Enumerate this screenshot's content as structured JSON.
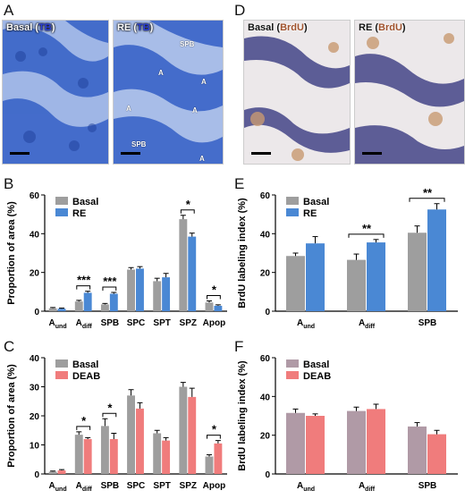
{
  "panels": {
    "A": "A",
    "B": "B",
    "C": "C",
    "D": "D",
    "E": "E",
    "F": "F"
  },
  "micrographs": [
    {
      "name": "basal-tb",
      "prefix": "Basal (",
      "stain": "TB",
      "suffix": ")"
    },
    {
      "name": "re-tb",
      "prefix": "RE (",
      "stain": "TB",
      "suffix": ")",
      "annotations": [
        "SPB",
        "A",
        "A",
        "A",
        "A",
        "SPB",
        "A"
      ]
    },
    {
      "name": "basal-brdu",
      "prefix": "Basal (",
      "stain": "BrdU",
      "suffix": ")"
    },
    {
      "name": "re-brdu",
      "prefix": "RE (",
      "stain": "BrdU",
      "suffix": ")"
    }
  ],
  "colors": {
    "basal": "#9e9e9e",
    "re": "#4a88d4",
    "deab": "#f07c7c",
    "tb_tissue": "#3a64c8",
    "brdu_bg": "#e8e4e6"
  },
  "chart_data": [
    {
      "id": "B",
      "type": "bar",
      "ylabel": "Proportion of area (%)",
      "ylim": [
        0,
        60
      ],
      "yticks": [
        "0",
        "20",
        "40",
        "60"
      ],
      "categories": [
        {
          "main": "A",
          "sub": "und"
        },
        {
          "main": "A",
          "sub": "diff"
        },
        {
          "main": "SPB",
          "sub": ""
        },
        {
          "main": "SPC",
          "sub": ""
        },
        {
          "main": "SPT",
          "sub": ""
        },
        {
          "main": "SPZ",
          "sub": ""
        },
        {
          "main": "Apop",
          "sub": ""
        }
      ],
      "legend_position": "top-left",
      "series": [
        {
          "name": "Basal",
          "color": "#9e9e9e",
          "values": [
            1.5,
            5.0,
            3.5,
            21.5,
            15.5,
            47.5,
            4.5
          ],
          "errors": [
            0.4,
            0.6,
            0.5,
            1.0,
            1.5,
            2.0,
            0.8
          ]
        },
        {
          "name": "RE",
          "color": "#4a88d4",
          "values": [
            1.3,
            9.5,
            9.0,
            22.0,
            17.5,
            38.5,
            2.8
          ],
          "errors": [
            0.3,
            0.8,
            0.7,
            1.0,
            2.0,
            1.8,
            0.5
          ]
        }
      ],
      "significance": [
        {
          "category": 1,
          "label": "***"
        },
        {
          "category": 2,
          "label": "***"
        },
        {
          "category": 5,
          "label": "*"
        },
        {
          "category": 6,
          "label": "*"
        }
      ]
    },
    {
      "id": "C",
      "type": "bar",
      "ylabel": "Proportion of area (%)",
      "ylim": [
        0,
        40
      ],
      "yticks": [
        "0",
        "10",
        "20",
        "30",
        "40"
      ],
      "categories": [
        {
          "main": "A",
          "sub": "und"
        },
        {
          "main": "A",
          "sub": "diff"
        },
        {
          "main": "SPB",
          "sub": ""
        },
        {
          "main": "SPC",
          "sub": ""
        },
        {
          "main": "SPT",
          "sub": ""
        },
        {
          "main": "SPZ",
          "sub": ""
        },
        {
          "main": "Apop",
          "sub": ""
        }
      ],
      "legend_position": "top-left",
      "series": [
        {
          "name": "Basal",
          "color": "#9e9e9e",
          "values": [
            0.8,
            13.5,
            16.5,
            27.0,
            14.0,
            30.0,
            6.0
          ],
          "errors": [
            0.2,
            1.0,
            2.5,
            2.0,
            1.0,
            1.5,
            0.6
          ]
        },
        {
          "name": "DEAB",
          "color": "#f07c7c",
          "values": [
            1.2,
            12.0,
            12.0,
            22.5,
            11.5,
            26.5,
            10.5
          ],
          "errors": [
            0.3,
            0.5,
            2.0,
            2.0,
            1.0,
            3.0,
            1.0
          ]
        }
      ],
      "significance": [
        {
          "category": 1,
          "label": "*"
        },
        {
          "category": 2,
          "label": "*"
        },
        {
          "category": 6,
          "label": "*"
        }
      ]
    },
    {
      "id": "E",
      "type": "bar",
      "ylabel": "BrdU labeling index (%)",
      "ylim": [
        0,
        60
      ],
      "yticks": [
        "0",
        "20",
        "40",
        "60"
      ],
      "categories": [
        {
          "main": "A",
          "sub": "und"
        },
        {
          "main": "A",
          "sub": "diff"
        },
        {
          "main": "SPB",
          "sub": ""
        }
      ],
      "legend_position": "top-left",
      "series": [
        {
          "name": "Basal",
          "color": "#9e9e9e",
          "values": [
            28.5,
            26.5,
            40.5
          ],
          "errors": [
            1.5,
            3.0,
            3.5
          ]
        },
        {
          "name": "RE",
          "color": "#4a88d4",
          "values": [
            35.0,
            35.5,
            52.5
          ],
          "errors": [
            3.5,
            1.5,
            3.0
          ]
        }
      ],
      "significance": [
        {
          "category": 1,
          "label": "**"
        },
        {
          "category": 2,
          "label": "**"
        }
      ]
    },
    {
      "id": "F",
      "type": "bar",
      "ylabel": "BrdU labeling index (%)",
      "ylim": [
        0,
        60
      ],
      "yticks": [
        "0",
        "20",
        "40",
        "60"
      ],
      "categories": [
        {
          "main": "A",
          "sub": "und"
        },
        {
          "main": "A",
          "sub": "diff"
        },
        {
          "main": "SPB",
          "sub": ""
        }
      ],
      "legend_position": "top-left",
      "series": [
        {
          "name": "Basal",
          "color": "#b09aa6",
          "values": [
            31.5,
            32.5,
            24.5
          ],
          "errors": [
            2.0,
            2.0,
            2.0
          ]
        },
        {
          "name": "DEAB",
          "color": "#f07c7c",
          "values": [
            30.0,
            33.5,
            20.5
          ],
          "errors": [
            1.0,
            2.5,
            2.0
          ]
        }
      ],
      "significance": []
    }
  ]
}
